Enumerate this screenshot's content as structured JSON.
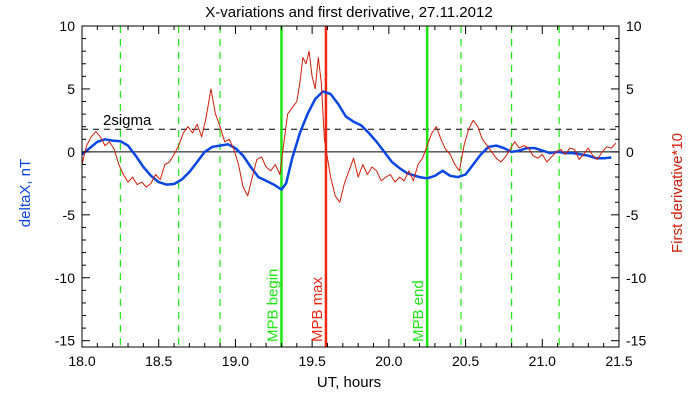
{
  "chart_data": {
    "type": "line",
    "title": "X-variations and first derivative, 27.11.2012",
    "xlabel": "UT, hours",
    "ylabel_left": "deltaX, nT",
    "ylabel_right": "First derivative*10",
    "xlim": [
      18.0,
      21.5
    ],
    "ylim": [
      -15.5,
      10
    ],
    "x_ticks": [
      "18.0",
      "18.5",
      "19.0",
      "19.5",
      "20.0",
      "20.5",
      "21.0",
      "21.5"
    ],
    "y_ticks_left": [
      "10",
      "5",
      "0",
      "-5",
      "-10",
      "-15"
    ],
    "y_ticks_right": [
      "10",
      "5",
      "0",
      "-5",
      "-10",
      "-15"
    ],
    "threshold": {
      "label": "2sigma",
      "value": 1.8
    },
    "zero_line": 0,
    "colors": {
      "deltaX": "#0a46e6",
      "derivative": "#d21e0a",
      "mpb": "#1ee614",
      "mpb_max": "#f02814",
      "axis": "#000000"
    },
    "markers": [
      {
        "label": "MPB begin",
        "x": 19.3,
        "kind": "mpb"
      },
      {
        "label": "MPB max",
        "x": 19.59,
        "kind": "mpb_max"
      },
      {
        "label": "MPB end",
        "x": 20.25,
        "kind": "mpb"
      }
    ],
    "dashed_green_lines": [
      18.25,
      18.63,
      18.9,
      20.47,
      20.8,
      21.11
    ],
    "series": [
      {
        "key": "deltaX",
        "points": [
          [
            18.0,
            -0.2
          ],
          [
            18.05,
            0.3
          ],
          [
            18.1,
            0.8
          ],
          [
            18.15,
            1.0
          ],
          [
            18.2,
            0.9
          ],
          [
            18.25,
            0.85
          ],
          [
            18.3,
            0.5
          ],
          [
            18.35,
            -0.3
          ],
          [
            18.4,
            -1.2
          ],
          [
            18.45,
            -1.9
          ],
          [
            18.5,
            -2.4
          ],
          [
            18.55,
            -2.6
          ],
          [
            18.6,
            -2.55
          ],
          [
            18.65,
            -2.2
          ],
          [
            18.7,
            -1.6
          ],
          [
            18.75,
            -0.8
          ],
          [
            18.8,
            0.0
          ],
          [
            18.85,
            0.4
          ],
          [
            18.9,
            0.5
          ],
          [
            18.95,
            0.6
          ],
          [
            19.0,
            0.3
          ],
          [
            19.05,
            -0.3
          ],
          [
            19.1,
            -1.2
          ],
          [
            19.15,
            -2.0
          ],
          [
            19.2,
            -2.3
          ],
          [
            19.25,
            -2.6
          ],
          [
            19.3,
            -3.0
          ],
          [
            19.33,
            -2.5
          ],
          [
            19.37,
            -0.5
          ],
          [
            19.42,
            1.5
          ],
          [
            19.47,
            3.0
          ],
          [
            19.52,
            4.2
          ],
          [
            19.57,
            4.8
          ],
          [
            19.62,
            4.6
          ],
          [
            19.67,
            3.8
          ],
          [
            19.72,
            2.8
          ],
          [
            19.77,
            2.4
          ],
          [
            19.82,
            2.1
          ],
          [
            19.87,
            1.5
          ],
          [
            19.92,
            0.8
          ],
          [
            19.97,
            0.0
          ],
          [
            20.02,
            -0.8
          ],
          [
            20.07,
            -1.3
          ],
          [
            20.12,
            -1.7
          ],
          [
            20.2,
            -2.0
          ],
          [
            20.25,
            -2.1
          ],
          [
            20.3,
            -1.9
          ],
          [
            20.35,
            -1.5
          ],
          [
            20.4,
            -1.9
          ],
          [
            20.45,
            -2.0
          ],
          [
            20.5,
            -1.8
          ],
          [
            20.55,
            -1.0
          ],
          [
            20.6,
            -0.2
          ],
          [
            20.65,
            0.4
          ],
          [
            20.7,
            0.5
          ],
          [
            20.75,
            0.3
          ],
          [
            20.8,
            0.0
          ],
          [
            20.85,
            0.1
          ],
          [
            20.9,
            0.3
          ],
          [
            20.95,
            0.3
          ],
          [
            21.0,
            0.1
          ],
          [
            21.05,
            -0.1
          ],
          [
            21.1,
            0.0
          ],
          [
            21.15,
            -0.1
          ],
          [
            21.2,
            -0.1
          ],
          [
            21.25,
            -0.2
          ],
          [
            21.3,
            -0.3
          ],
          [
            21.35,
            -0.5
          ],
          [
            21.4,
            -0.5
          ],
          [
            21.45,
            -0.45
          ]
        ]
      },
      {
        "key": "derivative",
        "points": [
          [
            18.0,
            -1.0
          ],
          [
            18.03,
            0.5
          ],
          [
            18.06,
            1.2
          ],
          [
            18.09,
            1.6
          ],
          [
            18.12,
            1.2
          ],
          [
            18.15,
            0.5
          ],
          [
            18.18,
            0.8
          ],
          [
            18.21,
            0.2
          ],
          [
            18.24,
            -1.0
          ],
          [
            18.27,
            -1.8
          ],
          [
            18.3,
            -2.4
          ],
          [
            18.33,
            -2.0
          ],
          [
            18.36,
            -2.6
          ],
          [
            18.39,
            -2.4
          ],
          [
            18.42,
            -2.8
          ],
          [
            18.45,
            -2.5
          ],
          [
            18.48,
            -1.8
          ],
          [
            18.51,
            -2.2
          ],
          [
            18.54,
            -1.0
          ],
          [
            18.57,
            -0.8
          ],
          [
            18.6,
            -0.2
          ],
          [
            18.63,
            0.5
          ],
          [
            18.66,
            1.5
          ],
          [
            18.69,
            2.0
          ],
          [
            18.72,
            1.5
          ],
          [
            18.75,
            2.2
          ],
          [
            18.78,
            1.2
          ],
          [
            18.81,
            2.8
          ],
          [
            18.84,
            5.0
          ],
          [
            18.87,
            3.0
          ],
          [
            18.9,
            2.0
          ],
          [
            18.93,
            0.8
          ],
          [
            18.96,
            1.0
          ],
          [
            18.99,
            0.2
          ],
          [
            19.02,
            -1.0
          ],
          [
            19.05,
            -2.8
          ],
          [
            19.08,
            -3.5
          ],
          [
            19.11,
            -2.0
          ],
          [
            19.14,
            -0.6
          ],
          [
            19.17,
            -0.4
          ],
          [
            19.2,
            -1.2
          ],
          [
            19.23,
            -1.5
          ],
          [
            19.26,
            -1.0
          ],
          [
            19.29,
            -1.8
          ],
          [
            19.31,
            0.2
          ],
          [
            19.34,
            3.0
          ],
          [
            19.37,
            3.5
          ],
          [
            19.4,
            4.0
          ],
          [
            19.42,
            5.5
          ],
          [
            19.44,
            7.5
          ],
          [
            19.46,
            7.0
          ],
          [
            19.48,
            8.0
          ],
          [
            19.5,
            6.0
          ],
          [
            19.52,
            5.0
          ],
          [
            19.54,
            7.5
          ],
          [
            19.56,
            5.5
          ],
          [
            19.58,
            1.0
          ],
          [
            19.6,
            -0.5
          ],
          [
            19.62,
            -2.0
          ],
          [
            19.65,
            -3.5
          ],
          [
            19.68,
            -4.0
          ],
          [
            19.71,
            -2.5
          ],
          [
            19.74,
            -1.5
          ],
          [
            19.77,
            -0.5
          ],
          [
            19.8,
            -2.0
          ],
          [
            19.83,
            -1.0
          ],
          [
            19.86,
            -1.8
          ],
          [
            19.89,
            -1.2
          ],
          [
            19.92,
            -1.5
          ],
          [
            19.95,
            -2.3
          ],
          [
            19.98,
            -2.0
          ],
          [
            20.01,
            -1.8
          ],
          [
            20.04,
            -2.4
          ],
          [
            20.07,
            -2.0
          ],
          [
            20.1,
            -2.3
          ],
          [
            20.13,
            -1.5
          ],
          [
            20.16,
            -2.3
          ],
          [
            20.19,
            -1.0
          ],
          [
            20.22,
            -0.5
          ],
          [
            20.25,
            0.5
          ],
          [
            20.28,
            1.5
          ],
          [
            20.31,
            2.0
          ],
          [
            20.34,
            1.0
          ],
          [
            20.37,
            0.2
          ],
          [
            20.4,
            -0.2
          ],
          [
            20.43,
            -1.0
          ],
          [
            20.46,
            -1.5
          ],
          [
            20.49,
            0.5
          ],
          [
            20.52,
            1.8
          ],
          [
            20.55,
            2.5
          ],
          [
            20.58,
            2.0
          ],
          [
            20.61,
            1.0
          ],
          [
            20.64,
            0.5
          ],
          [
            20.67,
            0.0
          ],
          [
            20.7,
            -0.5
          ],
          [
            20.73,
            -0.8
          ],
          [
            20.76,
            -0.4
          ],
          [
            20.79,
            0.2
          ],
          [
            20.82,
            0.8
          ],
          [
            20.85,
            0.3
          ],
          [
            20.88,
            0.5
          ],
          [
            20.91,
            0.3
          ],
          [
            20.94,
            -0.3
          ],
          [
            20.97,
            -0.5
          ],
          [
            21.0,
            -0.2
          ],
          [
            21.03,
            -0.8
          ],
          [
            21.06,
            -0.4
          ],
          [
            21.09,
            0.0
          ],
          [
            21.12,
            0.2
          ],
          [
            21.15,
            -0.2
          ],
          [
            21.18,
            0.3
          ],
          [
            21.21,
            0.2
          ],
          [
            21.24,
            -0.6
          ],
          [
            21.27,
            -0.2
          ],
          [
            21.3,
            0.3
          ],
          [
            21.33,
            -0.3
          ],
          [
            21.36,
            -0.6
          ],
          [
            21.39,
            0.0
          ],
          [
            21.42,
            0.4
          ],
          [
            21.45,
            0.3
          ],
          [
            21.48,
            0.7
          ]
        ]
      }
    ]
  }
}
